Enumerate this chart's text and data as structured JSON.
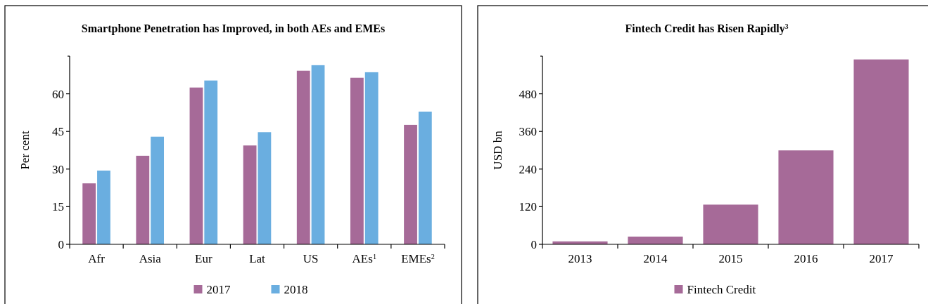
{
  "chart_data": [
    {
      "type": "bar",
      "title": "Smartphone Penetration has Improved, in both AEs and EMEs",
      "ylabel": "Per cent",
      "categories": [
        "Afr",
        "Asia",
        "Eur",
        "Lat",
        "US",
        "AEs$^{1}$",
        "EMEs$^{2}$"
      ],
      "series": [
        {
          "name": "2017",
          "color": "#a66a98",
          "values": [
            24.3,
            35.3,
            62.5,
            39.4,
            69.2,
            66.4,
            47.6
          ]
        },
        {
          "name": "2018",
          "color": "#6aaee0",
          "values": [
            29.4,
            42.9,
            65.3,
            44.7,
            71.4,
            68.6,
            52.9
          ]
        }
      ],
      "ylim": [
        0,
        75
      ],
      "yticks": [
        0,
        15,
        30,
        45,
        60
      ],
      "legend": "bottom",
      "grid": false
    },
    {
      "type": "bar",
      "title": "Fintech Credit has Risen Rapidly$^{3}$",
      "ylabel": "USD bn",
      "categories": [
        "2013",
        "2014",
        "2015",
        "2016",
        "2017"
      ],
      "series": [
        {
          "name": "Fintech Credit",
          "color": "#a66a98",
          "values": [
            9.4,
            24.6,
            126.6,
            299.5,
            589.6
          ]
        }
      ],
      "ylim": [
        0,
        600
      ],
      "yticks": [
        0,
        120,
        240,
        360,
        480
      ],
      "legend": "bottom",
      "grid": false
    }
  ]
}
